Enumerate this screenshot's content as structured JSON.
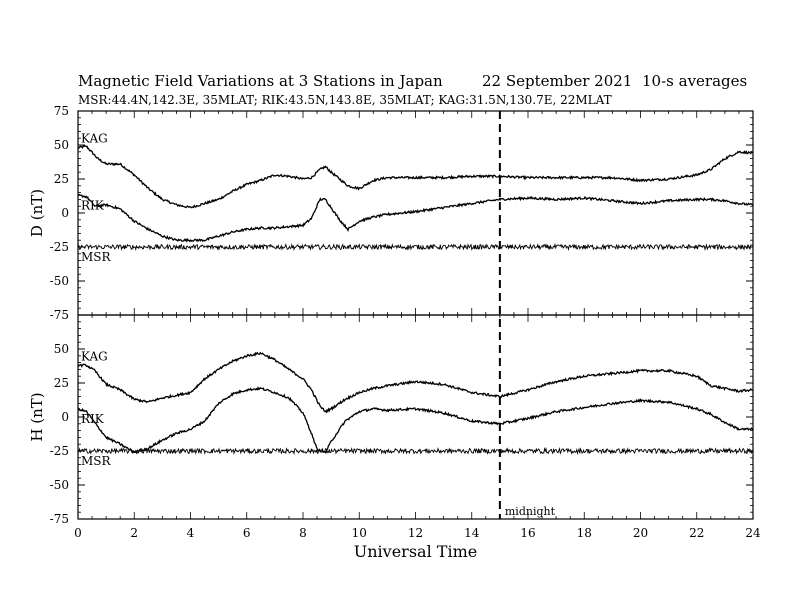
{
  "header": {
    "title": "Magnetic Field Variations at 3 Stations in Japan",
    "date": "22 September 2021",
    "averaging": "10-s averages",
    "stations": "MSR:44.4N,142.3E, 35MLAT;  RIK:43.5N,143.8E, 35MLAT;  KAG:31.5N,130.7E, 22MLAT"
  },
  "chart_data": [
    {
      "type": "line",
      "panel": "D",
      "ylabel": "D (nT)",
      "xlabel": "",
      "ylim": [
        -75,
        75
      ],
      "xlim": [
        0,
        24
      ],
      "yticks": [
        -75,
        -50,
        -25,
        0,
        25,
        50,
        75
      ],
      "xticks": [
        0,
        2,
        4,
        6,
        8,
        10,
        12,
        14,
        16,
        18,
        20,
        22,
        24
      ],
      "series": [
        {
          "name": "KAG",
          "x": [
            0,
            0.3,
            0.7,
            1,
            1.5,
            2,
            2.5,
            3,
            3.5,
            4,
            4.5,
            5,
            5.5,
            6,
            6.5,
            7,
            7.5,
            8,
            8.3,
            8.6,
            8.8,
            9,
            9.3,
            9.6,
            10,
            10.5,
            11,
            12,
            13,
            14,
            15,
            16,
            17,
            18,
            19,
            20,
            21,
            22,
            22.5,
            23,
            23.5,
            24
          ],
          "y": [
            48,
            49,
            40,
            36,
            36,
            28,
            18,
            10,
            6,
            4,
            7,
            10,
            16,
            21,
            24,
            28,
            27,
            25,
            26,
            32,
            34,
            30,
            25,
            20,
            18,
            24,
            26,
            26,
            26,
            27,
            27,
            26,
            26,
            26,
            26,
            24,
            25,
            28,
            32,
            40,
            45,
            44
          ]
        },
        {
          "name": "RIK",
          "x": [
            0,
            0.3,
            0.6,
            1,
            1.5,
            2,
            2.5,
            3,
            3.5,
            4,
            4.5,
            5,
            5.5,
            6,
            6.5,
            7,
            7.5,
            8,
            8.3,
            8.6,
            8.8,
            9,
            9.3,
            9.6,
            10,
            10.5,
            11,
            12,
            13,
            14,
            15,
            16,
            17,
            18,
            19,
            20,
            21,
            22,
            22.5,
            23,
            23.5,
            24
          ],
          "y": [
            13,
            12,
            5,
            6,
            3,
            -6,
            -12,
            -17,
            -20,
            -20,
            -20,
            -17,
            -14,
            -12,
            -11,
            -11,
            -10,
            -9,
            -4,
            10,
            10,
            4,
            -5,
            -12,
            -6,
            -3,
            -1,
            1,
            4,
            7,
            10,
            11,
            10,
            11,
            9,
            7,
            9,
            10,
            10,
            9,
            7,
            6
          ]
        },
        {
          "name": "MSR",
          "x": [
            0,
            2,
            4,
            6,
            8,
            10,
            12,
            14,
            16,
            18,
            20,
            22,
            24
          ],
          "y": [
            -25,
            -25,
            -25,
            -25,
            -25,
            -25,
            -25,
            -25,
            -25,
            -25,
            -25,
            -25,
            -25
          ]
        }
      ]
    },
    {
      "type": "line",
      "panel": "H",
      "ylabel": "H (nT)",
      "xlabel": "Universal Time",
      "ylim": [
        -75,
        75
      ],
      "xlim": [
        0,
        24
      ],
      "yticks": [
        -75,
        -50,
        -25,
        0,
        25,
        50
      ],
      "xticks": [
        0,
        2,
        4,
        6,
        8,
        10,
        12,
        14,
        16,
        18,
        20,
        22,
        24
      ],
      "series": [
        {
          "name": "KAG",
          "x": [
            0,
            0.3,
            0.6,
            1,
            1.5,
            2,
            2.5,
            3,
            3.5,
            4,
            4.5,
            5,
            5.5,
            6,
            6.5,
            7,
            7.5,
            8,
            8.3,
            8.6,
            8.8,
            9,
            9.5,
            10,
            10.5,
            11,
            12,
            13,
            14,
            15,
            16,
            17,
            18,
            19,
            20,
            21,
            22,
            22.5,
            23,
            23.5,
            24
          ],
          "y": [
            38,
            38,
            34,
            24,
            20,
            13,
            11,
            14,
            16,
            18,
            28,
            35,
            41,
            45,
            47,
            42,
            35,
            28,
            20,
            8,
            4,
            6,
            13,
            18,
            21,
            23,
            26,
            24,
            18,
            15,
            20,
            26,
            30,
            32,
            34,
            34,
            30,
            23,
            21,
            19,
            20
          ]
        },
        {
          "name": "RIK",
          "x": [
            0,
            0.3,
            0.7,
            1,
            1.5,
            2,
            2.5,
            3,
            3.5,
            4,
            4.5,
            5,
            5.5,
            6,
            6.5,
            7,
            7.5,
            8,
            8.3,
            8.5,
            8.8,
            9,
            9.5,
            10,
            10.5,
            11,
            12,
            13,
            14,
            15,
            16,
            17,
            18,
            19,
            20,
            21,
            22,
            22.5,
            23,
            23.5,
            24
          ],
          "y": [
            6,
            4,
            -7,
            -15,
            -20,
            -26,
            -23,
            -17,
            -12,
            -9,
            -3,
            10,
            17,
            20,
            21,
            18,
            14,
            3,
            -12,
            -24,
            -26,
            -18,
            -3,
            4,
            6,
            5,
            6,
            3,
            -3,
            -5,
            -1,
            4,
            7,
            10,
            12,
            11,
            6,
            2,
            -4,
            -9,
            -9
          ]
        },
        {
          "name": "MSR",
          "x": [
            0,
            2,
            4,
            6,
            8,
            10,
            12,
            14,
            16,
            18,
            20,
            22,
            24
          ],
          "y": [
            -25,
            -25,
            -25,
            -25,
            -25,
            -25,
            -25,
            -25,
            -25,
            -25,
            -25,
            -25,
            -25
          ]
        }
      ]
    }
  ],
  "annotation": {
    "label": "midnight",
    "x": 15
  },
  "colors": {
    "line": "#000000",
    "background": "#ffffff"
  }
}
